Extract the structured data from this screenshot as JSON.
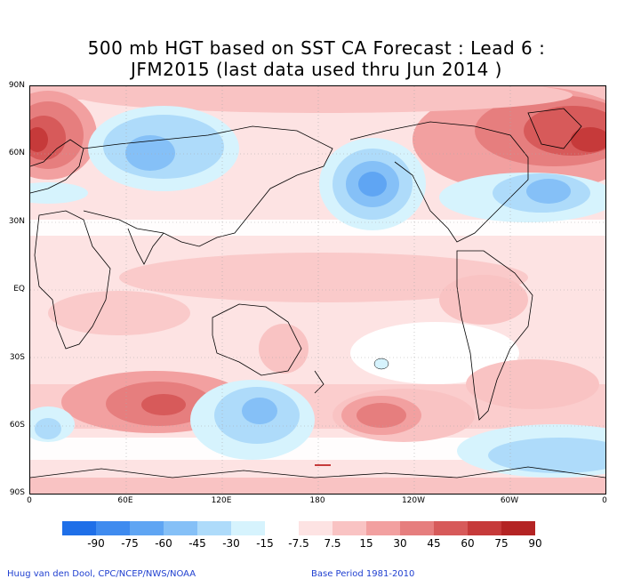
{
  "title_line1": "500 mb HGT based on SST CA Forecast : Lead 6 :",
  "title_line2": "JFM2015 (last data used thru Jun 2014 )",
  "y_ticks": [
    "90N",
    "60N",
    "30N",
    "EQ",
    "30S",
    "60S",
    "90S"
  ],
  "x_ticks": [
    "0",
    "60E",
    "120E",
    "180",
    "120W",
    "60W",
    "0"
  ],
  "colorbar": {
    "colors": [
      "#1f6fe8",
      "#3f8bef",
      "#5fa5f3",
      "#85c0f7",
      "#aedbfa",
      "#d6f3fd",
      "#ffffff",
      "#fde3e3",
      "#f9c3c3",
      "#f2a0a0",
      "#e67e7e",
      "#d75a5a",
      "#c63a3a",
      "#b42424"
    ],
    "labels": [
      "-90",
      "-75",
      "-60",
      "-45",
      "-30",
      "-15",
      "-7.5",
      "7.5",
      "15",
      "30",
      "45",
      "60",
      "75",
      "90"
    ]
  },
  "footer_left": "Huug van den Dool, CPC/NCEP/NWS/NOAA",
  "footer_right": "Base Period 1981-2010"
}
